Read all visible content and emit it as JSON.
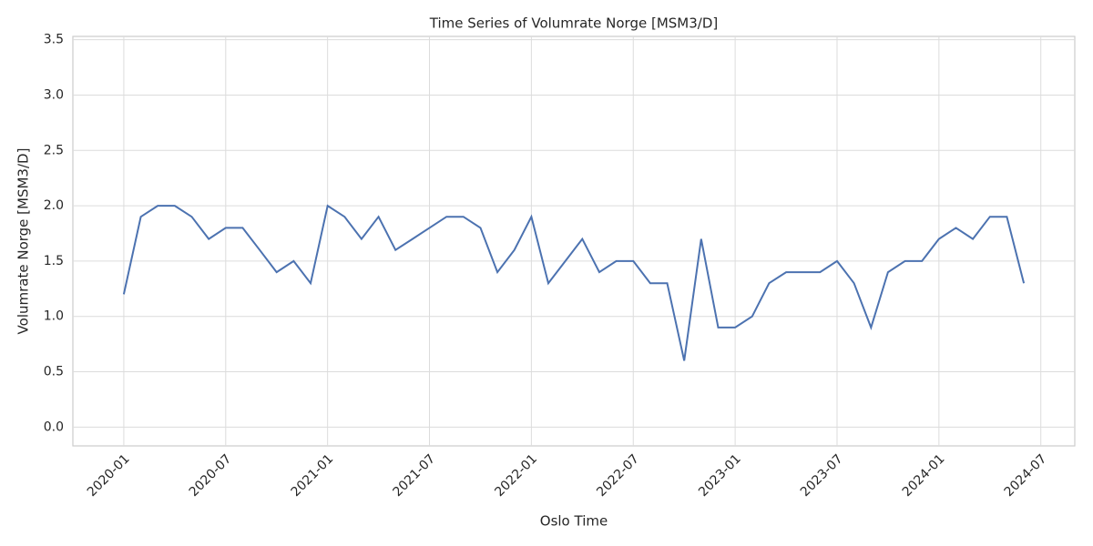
{
  "chart_data": {
    "type": "line",
    "title": "Time Series of Volumrate Norge [MSM3/D]",
    "x_label": "Oslo Time",
    "y_label": "Volumrate Norge [MSM3/D]",
    "x": [
      "2020-01",
      "2020-02",
      "2020-03",
      "2020-04",
      "2020-05",
      "2020-06",
      "2020-07",
      "2020-08",
      "2020-09",
      "2020-10",
      "2020-11",
      "2020-12",
      "2021-01",
      "2021-02",
      "2021-03",
      "2021-04",
      "2021-05",
      "2021-06",
      "2021-07",
      "2021-08",
      "2021-09",
      "2021-10",
      "2021-11",
      "2021-12",
      "2022-01",
      "2022-02",
      "2022-03",
      "2022-04",
      "2022-05",
      "2022-06",
      "2022-07",
      "2022-08",
      "2022-09",
      "2022-10",
      "2022-11",
      "2022-12",
      "2023-01",
      "2023-02",
      "2023-03",
      "2023-04",
      "2023-05",
      "2023-06",
      "2023-07",
      "2023-08",
      "2023-09",
      "2023-10",
      "2023-11",
      "2023-12",
      "2024-01",
      "2024-02",
      "2024-03",
      "2024-04",
      "2024-05",
      "2024-06"
    ],
    "series": [
      {
        "name": "Volumrate Norge",
        "color": "#4c72b0",
        "values": [
          1.2,
          1.9,
          2.0,
          2.0,
          1.9,
          1.7,
          1.8,
          1.8,
          1.6,
          1.4,
          1.5,
          1.3,
          2.0,
          1.9,
          1.7,
          1.9,
          1.6,
          1.7,
          1.8,
          1.9,
          1.9,
          1.8,
          1.4,
          1.6,
          1.9,
          1.3,
          1.5,
          1.7,
          1.4,
          1.5,
          1.5,
          1.3,
          1.3,
          0.6,
          1.7,
          0.9,
          0.9,
          1.0,
          1.3,
          1.4,
          1.4,
          1.4,
          1.5,
          1.3,
          0.9,
          1.4,
          1.5,
          1.5,
          1.7,
          1.8,
          1.7,
          1.9,
          1.9,
          1.3
        ]
      }
    ],
    "xlim": [
      "2019-10",
      "2024-09"
    ],
    "xticks": [
      "2020-01",
      "2020-07",
      "2021-01",
      "2021-07",
      "2022-01",
      "2022-07",
      "2023-01",
      "2023-07",
      "2024-01",
      "2024-07"
    ],
    "ylim": [
      -0.17,
      3.53
    ],
    "yticks": [
      {
        "value": 0,
        "label": "0.0"
      },
      {
        "value": 0.5,
        "label": "0.5"
      },
      {
        "value": 1,
        "label": "1.0"
      },
      {
        "value": 1.5,
        "label": "1.5"
      },
      {
        "value": 2,
        "label": "2.0"
      },
      {
        "value": 2.5,
        "label": "2.5"
      },
      {
        "value": 3,
        "label": "3.0"
      },
      {
        "value": 3.5,
        "label": "3.5"
      }
    ],
    "grid": true
  }
}
